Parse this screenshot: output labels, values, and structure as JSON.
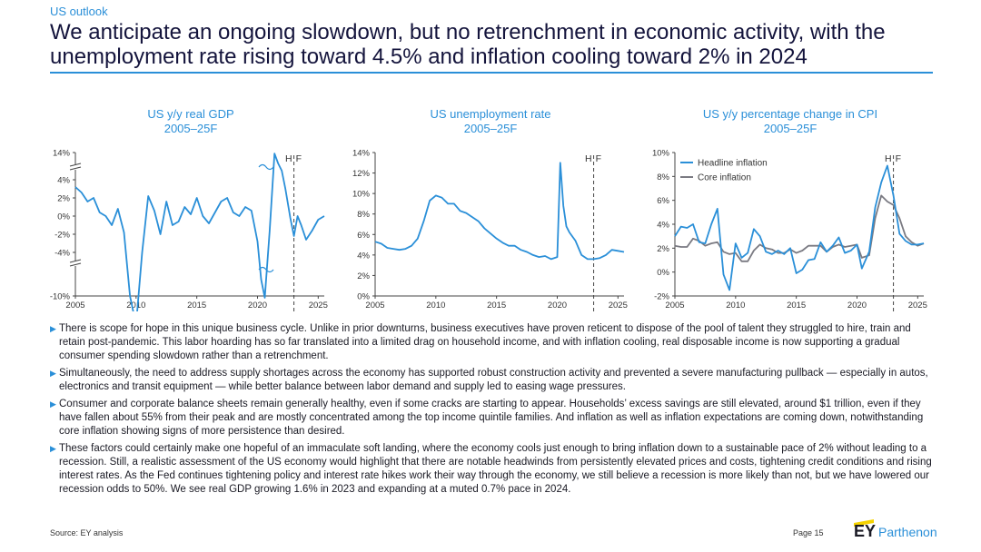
{
  "header": {
    "kicker": "US outlook",
    "headline": "We anticipate an ongoing slowdown, but no retrenchment in economic activity, with the unemployment rate rising toward 4.5% and inflation cooling toward 2% in 2024"
  },
  "colors": {
    "accent": "#2a8fd8",
    "series_primary": "#2a8fd8",
    "series_secondary": "#7a7a82",
    "rule": "#2a8fd8"
  },
  "chart_data": [
    {
      "type": "line",
      "title": "US y/y real GDP",
      "subtitle": "2005–25F",
      "hf_marker": {
        "label_left": "H",
        "label_right": "F",
        "x": 2023.0
      },
      "x_ticks": [
        "2005",
        "2010",
        "2015",
        "2020",
        "2025"
      ],
      "y_ticks": [
        "14%",
        "4%",
        "2%",
        "0%",
        "-2%",
        "-4%",
        "-10%"
      ],
      "axis_break": true,
      "grid": false,
      "series": [
        {
          "points": [
            [
              2005,
              3.6
            ],
            [
              2005.5,
              3.3
            ],
            [
              2006,
              2.8
            ],
            [
              2006.5,
              3.0
            ],
            [
              2007,
              2.2
            ],
            [
              2007.5,
              2.0
            ],
            [
              2008,
              1.5
            ],
            [
              2008.5,
              2.4
            ],
            [
              2009,
              1.1
            ],
            [
              2009.5,
              -2.4
            ],
            [
              2010,
              -4.0
            ],
            [
              2010.5,
              0.0
            ],
            [
              2011,
              3.1
            ],
            [
              2011.5,
              2.3
            ],
            [
              2012,
              1.0
            ],
            [
              2012.5,
              2.8
            ],
            [
              2013,
              1.5
            ],
            [
              2013.5,
              1.7
            ],
            [
              2014,
              2.5
            ],
            [
              2014.5,
              2.1
            ],
            [
              2015,
              3.0
            ],
            [
              2015.5,
              2.0
            ],
            [
              2016,
              1.6
            ],
            [
              2016.5,
              2.2
            ],
            [
              2017,
              2.8
            ],
            [
              2017.5,
              3.0
            ],
            [
              2018,
              2.2
            ],
            [
              2018.5,
              2.0
            ],
            [
              2019,
              2.5
            ],
            [
              2019.5,
              2.3
            ],
            [
              2020,
              0.6
            ],
            [
              2020.3,
              -9.1
            ],
            [
              2020.6,
              -2.5
            ],
            [
              2021,
              1.2
            ],
            [
              2021.4,
              12.0
            ],
            [
              2021.7,
              4.9
            ],
            [
              2022,
              4.5
            ],
            [
              2022.3,
              3.5
            ],
            [
              2022.7,
              1.9
            ],
            [
              2023,
              0.9
            ],
            [
              2023.3,
              2.0
            ],
            [
              2023.6,
              1.5
            ],
            [
              2024,
              0.7
            ],
            [
              2024.5,
              1.2
            ],
            [
              2025,
              1.8
            ],
            [
              2025.5,
              2.0
            ]
          ]
        }
      ]
    },
    {
      "type": "line",
      "title": "US unemployment rate",
      "subtitle": "2005–25F",
      "hf_marker": {
        "label_left": "H",
        "label_right": "F",
        "x": 2023.0
      },
      "x_ticks": [
        "2005",
        "2010",
        "2015",
        "2020",
        "2025"
      ],
      "y_ticks": [
        "14%",
        "12%",
        "10%",
        "8%",
        "6%",
        "4%",
        "2%",
        "0%"
      ],
      "ylim": [
        0,
        14
      ],
      "grid": false,
      "series": [
        {
          "points": [
            [
              2005,
              5.3
            ],
            [
              2005.5,
              5.1
            ],
            [
              2006,
              4.7
            ],
            [
              2006.5,
              4.6
            ],
            [
              2007,
              4.5
            ],
            [
              2007.5,
              4.6
            ],
            [
              2008,
              4.9
            ],
            [
              2008.5,
              5.6
            ],
            [
              2009,
              7.3
            ],
            [
              2009.5,
              9.3
            ],
            [
              2010,
              9.8
            ],
            [
              2010.5,
              9.6
            ],
            [
              2011,
              9.0
            ],
            [
              2011.5,
              9.0
            ],
            [
              2012,
              8.3
            ],
            [
              2012.5,
              8.1
            ],
            [
              2013,
              7.7
            ],
            [
              2013.5,
              7.3
            ],
            [
              2014,
              6.6
            ],
            [
              2014.5,
              6.1
            ],
            [
              2015,
              5.6
            ],
            [
              2015.5,
              5.2
            ],
            [
              2016,
              4.9
            ],
            [
              2016.5,
              4.9
            ],
            [
              2017,
              4.5
            ],
            [
              2017.5,
              4.3
            ],
            [
              2018,
              4.0
            ],
            [
              2018.5,
              3.8
            ],
            [
              2019,
              3.9
            ],
            [
              2019.5,
              3.6
            ],
            [
              2020,
              3.8
            ],
            [
              2020.25,
              13.0
            ],
            [
              2020.5,
              8.8
            ],
            [
              2020.75,
              6.8
            ],
            [
              2021,
              6.2
            ],
            [
              2021.5,
              5.4
            ],
            [
              2022,
              4.0
            ],
            [
              2022.5,
              3.6
            ],
            [
              2023,
              3.6
            ],
            [
              2023.5,
              3.7
            ],
            [
              2024,
              4.0
            ],
            [
              2024.5,
              4.5
            ],
            [
              2025,
              4.4
            ],
            [
              2025.5,
              4.3
            ]
          ]
        }
      ]
    },
    {
      "type": "line",
      "title": "US y/y percentage change in CPI",
      "subtitle": "2005–25F",
      "hf_marker": {
        "label_left": "H",
        "label_right": "F",
        "x": 2023.0
      },
      "x_ticks": [
        "2005",
        "2010",
        "2015",
        "2020",
        "2025"
      ],
      "y_ticks": [
        "10%",
        "8%",
        "6%",
        "4%",
        "2%",
        "0%",
        "-2%"
      ],
      "ylim": [
        -2,
        10
      ],
      "grid": false,
      "legend_position": "top-left",
      "series": [
        {
          "name": "Headline inflation",
          "points": [
            [
              2005,
              3.0
            ],
            [
              2005.5,
              3.8
            ],
            [
              2006,
              3.7
            ],
            [
              2006.5,
              4.0
            ],
            [
              2007,
              2.5
            ],
            [
              2007.5,
              2.4
            ],
            [
              2008,
              4.0
            ],
            [
              2008.5,
              5.3
            ],
            [
              2009,
              -0.2
            ],
            [
              2009.5,
              -1.5
            ],
            [
              2010,
              2.4
            ],
            [
              2010.5,
              1.2
            ],
            [
              2011,
              1.6
            ],
            [
              2011.5,
              3.6
            ],
            [
              2012,
              3.0
            ],
            [
              2012.5,
              1.7
            ],
            [
              2013,
              1.5
            ],
            [
              2013.5,
              1.8
            ],
            [
              2014,
              1.5
            ],
            [
              2014.5,
              2.0
            ],
            [
              2015,
              -0.1
            ],
            [
              2015.5,
              0.2
            ],
            [
              2016,
              1.0
            ],
            [
              2016.5,
              1.1
            ],
            [
              2017,
              2.5
            ],
            [
              2017.5,
              1.7
            ],
            [
              2018,
              2.2
            ],
            [
              2018.5,
              2.9
            ],
            [
              2019,
              1.6
            ],
            [
              2019.5,
              1.8
            ],
            [
              2020,
              2.3
            ],
            [
              2020.4,
              0.3
            ],
            [
              2021,
              1.7
            ],
            [
              2021.5,
              5.4
            ],
            [
              2022,
              7.5
            ],
            [
              2022.5,
              8.9
            ],
            [
              2023,
              6.4
            ],
            [
              2023.5,
              3.2
            ],
            [
              2024,
              2.6
            ],
            [
              2024.5,
              2.3
            ],
            [
              2025,
              2.3
            ],
            [
              2025.5,
              2.4
            ]
          ]
        },
        {
          "name": "Core inflation",
          "points": [
            [
              2005,
              2.2
            ],
            [
              2005.5,
              2.1
            ],
            [
              2006,
              2.1
            ],
            [
              2006.5,
              2.8
            ],
            [
              2007,
              2.6
            ],
            [
              2007.5,
              2.2
            ],
            [
              2008,
              2.4
            ],
            [
              2008.5,
              2.5
            ],
            [
              2009,
              1.7
            ],
            [
              2009.5,
              1.5
            ],
            [
              2010,
              1.6
            ],
            [
              2010.5,
              0.9
            ],
            [
              2011,
              0.9
            ],
            [
              2011.5,
              1.8
            ],
            [
              2012,
              2.3
            ],
            [
              2012.5,
              2.0
            ],
            [
              2013,
              1.9
            ],
            [
              2013.5,
              1.6
            ],
            [
              2014,
              1.6
            ],
            [
              2014.5,
              1.9
            ],
            [
              2015,
              1.6
            ],
            [
              2015.5,
              1.8
            ],
            [
              2016,
              2.2
            ],
            [
              2016.5,
              2.2
            ],
            [
              2017,
              2.2
            ],
            [
              2017.5,
              1.7
            ],
            [
              2018,
              2.1
            ],
            [
              2018.5,
              2.3
            ],
            [
              2019,
              2.1
            ],
            [
              2019.5,
              2.2
            ],
            [
              2020,
              2.3
            ],
            [
              2020.4,
              1.2
            ],
            [
              2021,
              1.4
            ],
            [
              2021.5,
              4.5
            ],
            [
              2022,
              6.4
            ],
            [
              2022.5,
              5.9
            ],
            [
              2023,
              5.6
            ],
            [
              2023.5,
              4.5
            ],
            [
              2024,
              3.0
            ],
            [
              2024.5,
              2.5
            ],
            [
              2025,
              2.2
            ],
            [
              2025.5,
              2.4
            ]
          ]
        }
      ]
    }
  ],
  "bullets": [
    {
      "text": "There is scope for hope in this unique business cycle. Unlike in prior downturns, business executives have proven reticent to dispose of the pool of talent they struggled to hire, train and retain post-pandemic. This labor hoarding has so far translated into a limited drag on household income, and with inflation cooling, real disposable income is now supporting a gradual consumer spending slowdown rather than a retrenchment."
    },
    {
      "text": "Simultaneously, the need to address supply shortages across the economy has supported robust construction activity and prevented a severe manufacturing pullback — especially in autos, electronics and transit equipment — while better balance between labor demand and supply led to easing wage pressures."
    },
    {
      "text": "Consumer and corporate balance sheets remain generally healthy, even if some cracks are starting to appear. Households’ excess savings are still elevated, around $1 trillion, even if they have fallen about 55% from their peak and are mostly concentrated among the top income quintile families. And inflation as well as inflation expectations are coming down, notwithstanding core inflation showing signs of more persistence than desired."
    },
    {
      "text": "These factors could certainly make one hopeful of an immaculate soft landing, where the economy cools just enough to bring inflation down to a sustainable pace of 2% without leading to a recession. Still, a realistic assessment of the US economy would highlight that there are notable headwinds from persistently elevated prices and costs, tightening credit conditions and rising interest rates. As the Fed continues tightening policy and interest rate hikes work their way through the economy, we still believe a recession is more likely than not, but we have lowered our recession odds to 50%. We see real GDP growing 1.6% in 2023 and expanding at a muted 0.7% pace in 2024."
    }
  ],
  "footer": {
    "source": "Source: EY analysis",
    "page": "Page 15",
    "logo_mark": "EY",
    "logo_brand": "Parthenon"
  }
}
